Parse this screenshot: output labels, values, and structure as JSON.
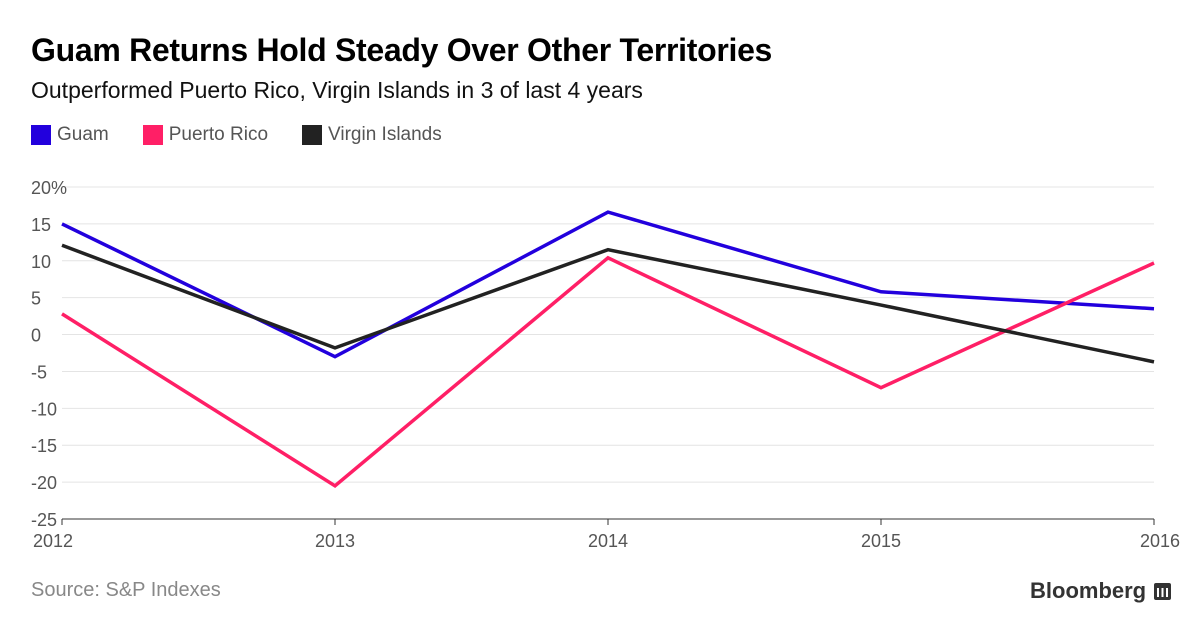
{
  "chart_data": {
    "type": "line",
    "title": "Guam Returns Hold Steady Over Other Territories",
    "subtitle": "Outperformed Puerto Rico, Virgin Islands in 3 of last 4 years",
    "x": [
      "2012",
      "2013",
      "2014",
      "2015",
      "2016"
    ],
    "series": [
      {
        "name": "Guam",
        "color": "#2200dd",
        "values": [
          15.0,
          -3.0,
          16.6,
          5.8,
          3.5
        ]
      },
      {
        "name": "Puerto Rico",
        "color": "#ff1f66",
        "values": [
          2.8,
          -20.5,
          10.4,
          -7.2,
          9.7
        ]
      },
      {
        "name": "Virgin Islands",
        "color": "#222222",
        "values": [
          12.1,
          -1.8,
          11.5,
          4.0,
          -3.7
        ]
      }
    ],
    "ylim": [
      -25,
      20
    ],
    "yticks": [
      20,
      15,
      10,
      5,
      0,
      -5,
      -10,
      -15,
      -20,
      -25
    ],
    "ytick_labels": [
      "20%",
      "15",
      "10",
      "5",
      "0",
      "-5",
      "-10",
      "-15",
      "-20",
      "-25"
    ],
    "xlabel": "",
    "ylabel": "",
    "grid": true,
    "legend": "top-left"
  },
  "footer": {
    "source": "Source: S&P Indexes",
    "brand": "Bloomberg"
  }
}
